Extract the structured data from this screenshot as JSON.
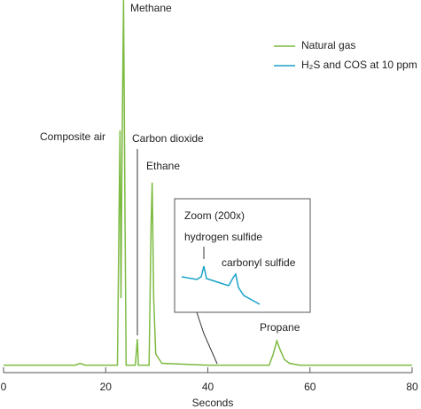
{
  "chart_data": [
    {
      "type": "line",
      "xlabel": "Seconds",
      "xlim": [
        0,
        80
      ],
      "xticks": [
        0,
        20,
        40,
        60,
        80
      ],
      "ylim": [
        0,
        100
      ],
      "legend": "top-right",
      "series": [
        {
          "name": "Natural gas",
          "color": "#7dbb42",
          "x": [
            0,
            14,
            15,
            16,
            22.3,
            22.6,
            22.8,
            23.0,
            23.2,
            23.5,
            23.8,
            24.0,
            25.8,
            26.2,
            26.4,
            26.7,
            28.5,
            28.9,
            29.1,
            29.4,
            29.8,
            31,
            40,
            52,
            52.8,
            53.5,
            54.2,
            55,
            56,
            58,
            80
          ],
          "values": [
            2,
            2,
            2.5,
            2,
            2,
            40,
            65,
            20,
            60,
            100,
            40,
            2,
            2,
            9,
            2,
            2,
            2,
            40,
            51,
            20,
            5,
            2.5,
            2,
            2,
            5,
            8.5,
            6,
            3.5,
            2.5,
            2,
            2
          ]
        }
      ],
      "annotations": [
        "Methane",
        "Composite air",
        "Carbon dioxide",
        "Ethane",
        "Propane"
      ]
    },
    {
      "type": "line",
      "title": "Zoom (200x)",
      "xlim": [
        -8,
        145
      ],
      "ylim": [
        0,
        128
      ],
      "series": [
        {
          "name": "H₂S and COS at 10 ppm",
          "color": "#1aa3c8",
          "x": [
            0,
            17,
            22,
            25,
            28,
            53,
            58,
            61,
            64,
            70,
            88
          ],
          "values": [
            40,
            37,
            40,
            52,
            38,
            30,
            39,
            43,
            28,
            19,
            9
          ]
        }
      ],
      "annotations": [
        "hydrogen sulfide",
        "carbonyl sulfide"
      ]
    }
  ]
}
